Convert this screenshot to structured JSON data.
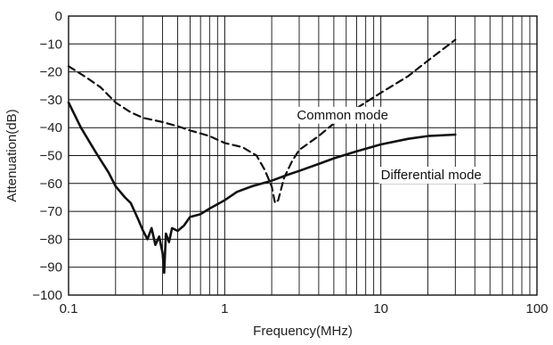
{
  "chart_data": {
    "type": "line",
    "xlabel": "Frequency(MHz)",
    "ylabel": "Attenuation(dB)",
    "xscale": "log",
    "xlim": [
      0.1,
      100
    ],
    "ylim": [
      -100,
      0
    ],
    "x_ticks": [
      "0.1",
      "1",
      "10",
      "100"
    ],
    "y_ticks": [
      "0",
      "−10",
      "−20",
      "−30",
      "−40",
      "−50",
      "−60",
      "−70",
      "−80",
      "−90",
      "−100"
    ],
    "grid": true,
    "series": [
      {
        "name": "Common mode",
        "style": "dashed",
        "color": "#111111",
        "x": [
          0.1,
          0.13,
          0.16,
          0.2,
          0.25,
          0.3,
          0.4,
          0.5,
          0.6,
          0.8,
          1.0,
          1.3,
          1.6,
          1.8,
          2.0,
          2.1,
          2.2,
          2.4,
          2.7,
          3.0,
          4.0,
          5.0,
          7.0,
          10.0,
          15.0,
          20.0,
          30.0
        ],
        "y": [
          -18,
          -22,
          -25.5,
          -31,
          -34.5,
          -36.5,
          -38,
          -39.5,
          -41,
          -43,
          -45.5,
          -47,
          -50,
          -55,
          -61,
          -67,
          -66,
          -58,
          -52,
          -48,
          -43,
          -38.5,
          -33,
          -27.5,
          -21.5,
          -16,
          -8.5
        ]
      },
      {
        "name": "Differential mode",
        "style": "solid",
        "color": "#111111",
        "x": [
          0.1,
          0.12,
          0.15,
          0.18,
          0.2,
          0.23,
          0.25,
          0.28,
          0.3,
          0.32,
          0.34,
          0.36,
          0.38,
          0.4,
          0.41,
          0.42,
          0.44,
          0.46,
          0.5,
          0.55,
          0.6,
          0.7,
          0.8,
          1.0,
          1.2,
          1.5,
          2.0,
          2.5,
          3.0,
          4.0,
          5.0,
          7.0,
          10.0,
          15.0,
          20.0,
          30.0
        ],
        "y": [
          -31,
          -40,
          -49,
          -56,
          -61,
          -65,
          -67,
          -73,
          -77,
          -80,
          -76,
          -82,
          -79,
          -85,
          -92,
          -78,
          -81,
          -76,
          -77,
          -75,
          -72,
          -71,
          -69,
          -66,
          -63,
          -61,
          -59,
          -57,
          -55.5,
          -53,
          -51,
          -48.5,
          -46,
          -44,
          -43,
          -42.5
        ]
      }
    ],
    "annotations": [
      {
        "text": "Common mode",
        "x": 2.9,
        "y": -37
      },
      {
        "text": "Differential mode",
        "x": 10.0,
        "y": -58.5
      }
    ]
  }
}
